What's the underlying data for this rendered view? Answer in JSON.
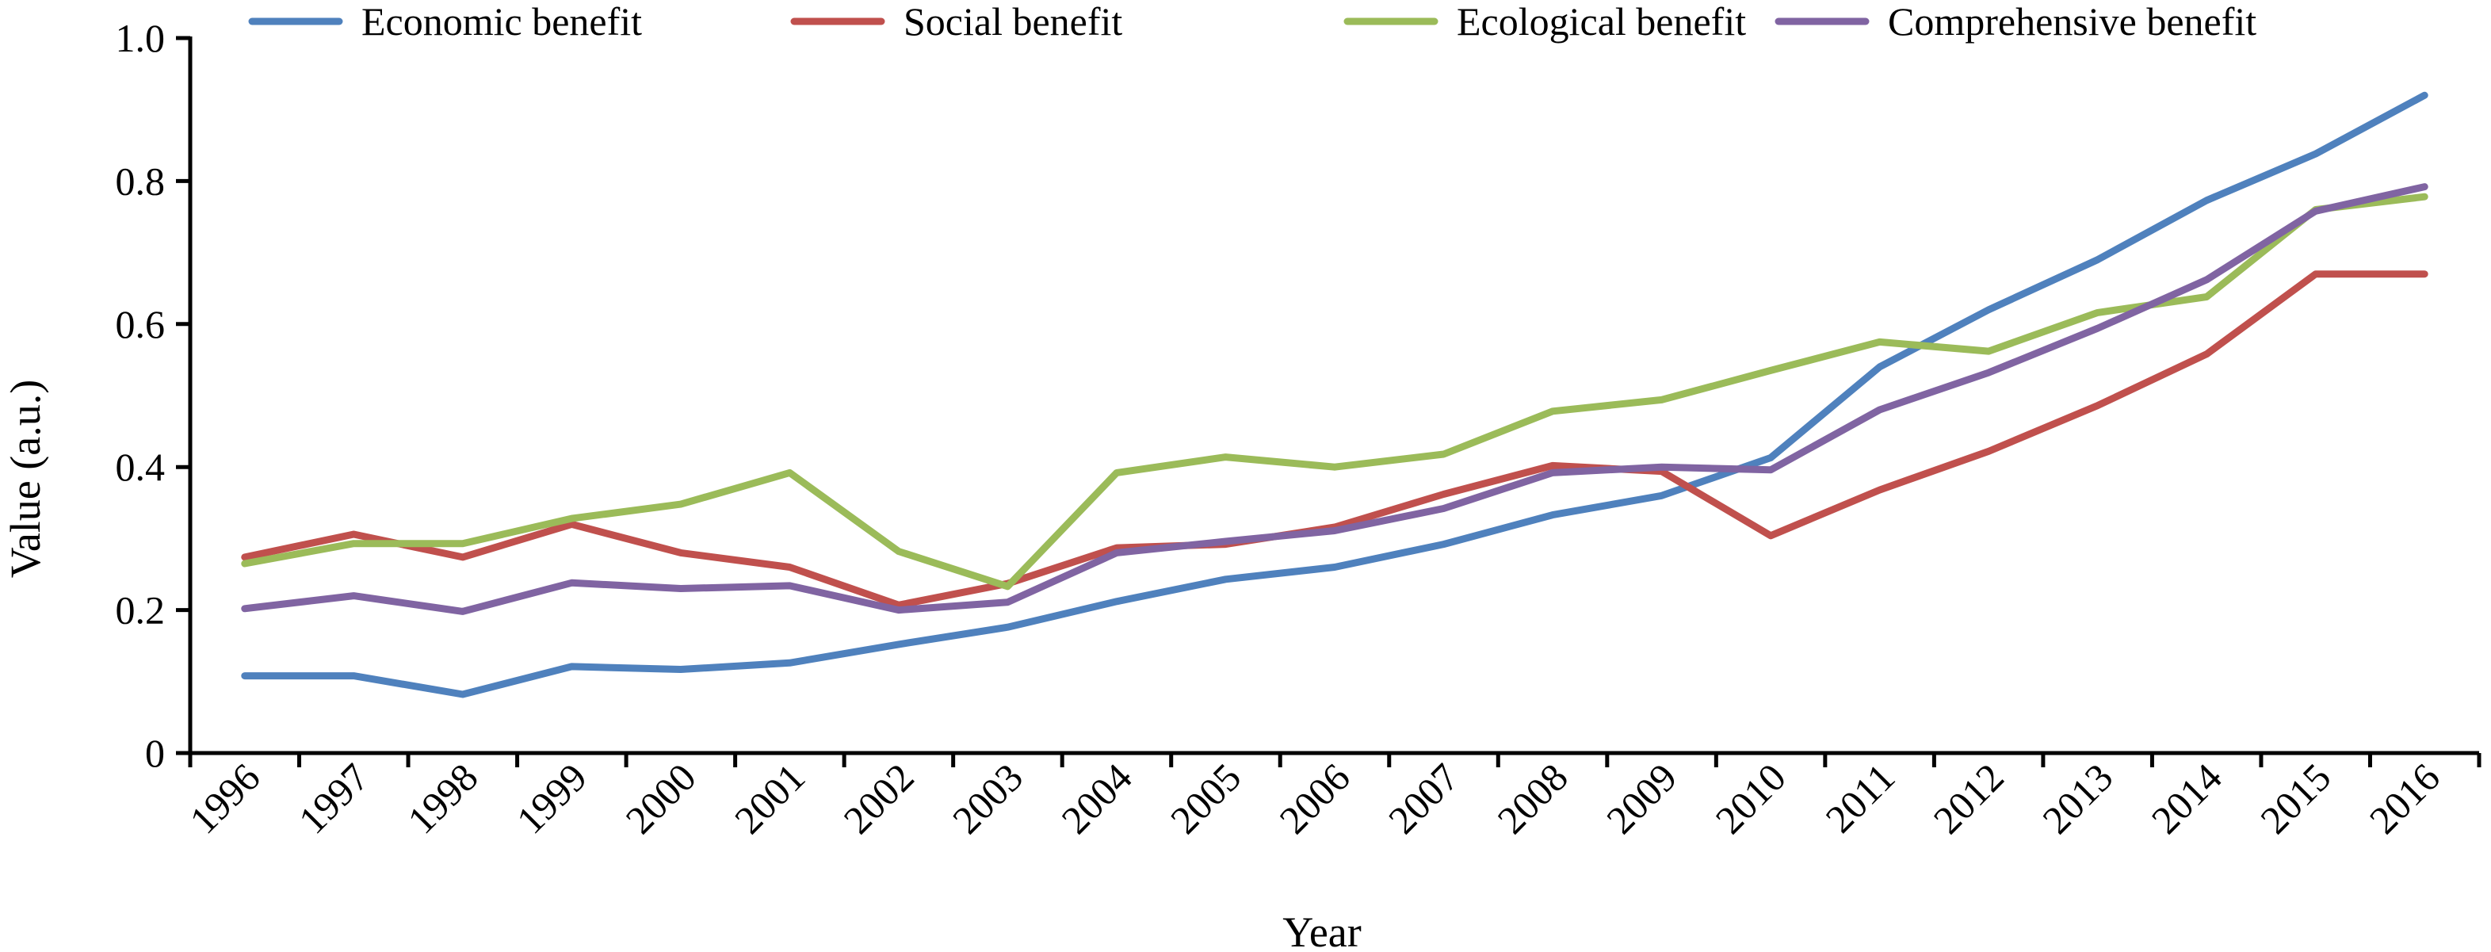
{
  "chart_data": {
    "type": "line",
    "title": "",
    "xlabel": "Year",
    "ylabel": "Value (a.u.)",
    "ylim": [
      0,
      1.0
    ],
    "yticks": [
      "0",
      "0.2",
      "0.4",
      "0.6",
      "0.8",
      "1.0"
    ],
    "grid": false,
    "legend": "top",
    "x": [
      "1996",
      "1997",
      "1998",
      "1999",
      "2000",
      "2001",
      "2002",
      "2003",
      "2004",
      "2005",
      "2006",
      "2007",
      "2008",
      "2009",
      "2010",
      "2011",
      "2012",
      "2013",
      "2014",
      "2015",
      "2016"
    ],
    "series": [
      {
        "name": "Economic benefit",
        "color": "#4F81BD",
        "values": [
          0.108,
          0.108,
          0.082,
          0.121,
          0.117,
          0.126,
          0.152,
          0.176,
          0.212,
          0.243,
          0.26,
          0.292,
          0.333,
          0.36,
          0.413,
          0.54,
          0.62,
          0.69,
          0.773,
          0.838,
          0.92
        ]
      },
      {
        "name": "Social benefit",
        "color": "#C0504D",
        "values": [
          0.274,
          0.306,
          0.274,
          0.32,
          0.28,
          0.26,
          0.207,
          0.237,
          0.287,
          0.292,
          0.316,
          0.362,
          0.402,
          0.394,
          0.304,
          0.368,
          0.422,
          0.486,
          0.558,
          0.67,
          0.67
        ]
      },
      {
        "name": "Ecological benefit",
        "color": "#9BBB59",
        "values": [
          0.265,
          0.293,
          0.293,
          0.328,
          0.348,
          0.392,
          0.282,
          0.233,
          0.392,
          0.414,
          0.4,
          0.418,
          0.478,
          0.494,
          0.535,
          0.575,
          0.562,
          0.616,
          0.638,
          0.76,
          0.778
        ]
      },
      {
        "name": "Comprehensive benefit",
        "color": "#8064A2",
        "values": [
          0.202,
          0.22,
          0.198,
          0.238,
          0.23,
          0.234,
          0.2,
          0.211,
          0.28,
          0.296,
          0.311,
          0.342,
          0.392,
          0.4,
          0.396,
          0.48,
          0.532,
          0.594,
          0.662,
          0.758,
          0.792
        ]
      }
    ]
  }
}
